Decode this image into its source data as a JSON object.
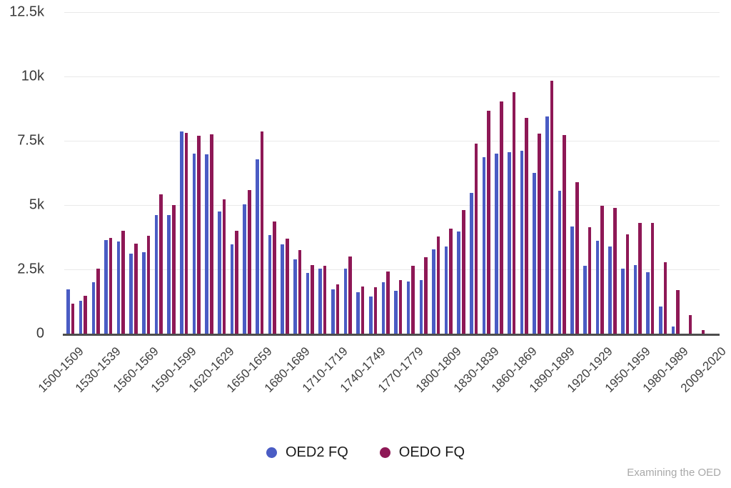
{
  "chart": {
    "y_axis": {
      "ticks": [
        {
          "label": "12.5k",
          "value": 12500
        },
        {
          "label": "10k",
          "value": 10000
        },
        {
          "label": "7.5k",
          "value": 7500
        },
        {
          "label": "5k",
          "value": 5000
        },
        {
          "label": "2.5k",
          "value": 2500
        },
        {
          "label": "0",
          "value": 0
        }
      ]
    },
    "footer": "Examining the OED"
  },
  "chart_data": {
    "type": "bar",
    "title": "",
    "xlabel": "",
    "ylabel": "",
    "ylim": [
      0,
      12500
    ],
    "grid": "horizontal",
    "legend_position": "bottom",
    "x_label_every": 3,
    "categories": [
      "1500-1509",
      "1510-1519",
      "1520-1529",
      "1530-1539",
      "1540-1549",
      "1550-1559",
      "1560-1569",
      "1570-1579",
      "1580-1589",
      "1590-1599",
      "1600-1609",
      "1610-1619",
      "1620-1629",
      "1630-1639",
      "1640-1649",
      "1650-1659",
      "1660-1669",
      "1670-1679",
      "1680-1689",
      "1690-1699",
      "1700-1709",
      "1710-1719",
      "1720-1729",
      "1730-1739",
      "1740-1749",
      "1750-1759",
      "1760-1769",
      "1770-1779",
      "1780-1789",
      "1790-1799",
      "1800-1809",
      "1810-1819",
      "1820-1829",
      "1830-1839",
      "1840-1849",
      "1850-1859",
      "1860-1869",
      "1870-1879",
      "1880-1889",
      "1890-1899",
      "1900-1909",
      "1910-1919",
      "1920-1929",
      "1930-1939",
      "1940-1949",
      "1950-1959",
      "1960-1969",
      "1970-1979",
      "1980-1989",
      "1990-1999",
      "2000-2009",
      "2009-2020"
    ],
    "series": [
      {
        "name": "OED2 FQ",
        "color": "#4a5cc4",
        "values": [
          1730,
          1280,
          2000,
          3650,
          3570,
          3100,
          3180,
          4600,
          4620,
          7850,
          7000,
          6980,
          4760,
          3480,
          5020,
          6770,
          3840,
          3460,
          2890,
          2360,
          2520,
          1730,
          2530,
          1610,
          1450,
          1990,
          1670,
          2040,
          2070,
          3270,
          3390,
          3970,
          5470,
          6860,
          7010,
          7060,
          7110,
          6240,
          8440,
          5560,
          4170,
          2630,
          3620,
          3380,
          2540,
          2680,
          2380,
          1050,
          280,
          0,
          0,
          0
        ]
      },
      {
        "name": "OEDO FQ",
        "color": "#8e1856",
        "values": [
          1180,
          1460,
          2520,
          3720,
          4000,
          3500,
          3800,
          5430,
          5000,
          7800,
          7700,
          7750,
          5220,
          4000,
          5570,
          7850,
          4370,
          3700,
          3260,
          2680,
          2640,
          1920,
          3010,
          1820,
          1810,
          2430,
          2080,
          2650,
          2960,
          3780,
          4080,
          4800,
          7390,
          8680,
          9030,
          9380,
          8390,
          7780,
          9830,
          7730,
          5900,
          4150,
          4960,
          4880,
          3870,
          4310,
          4310,
          2780,
          1690,
          730,
          150,
          0
        ]
      }
    ]
  }
}
